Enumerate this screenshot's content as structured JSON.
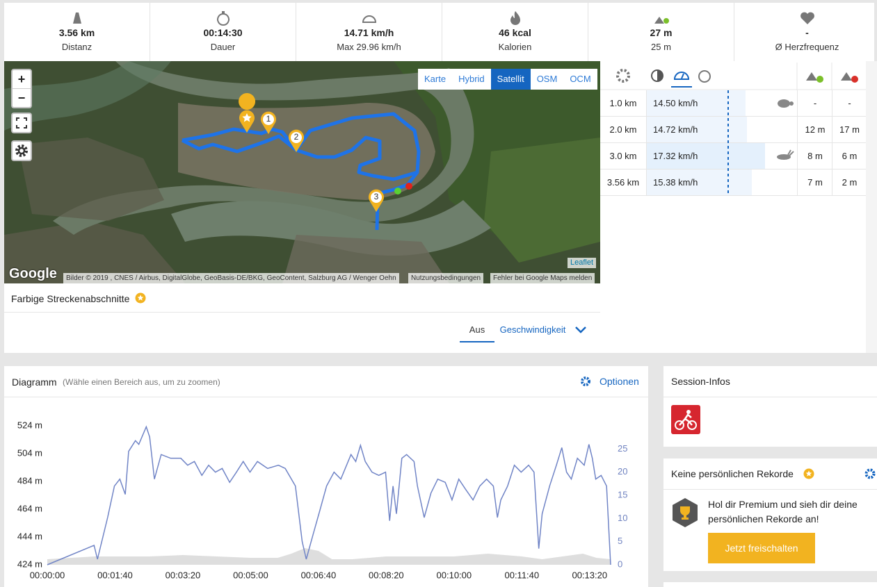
{
  "stats": [
    {
      "value": "3.56 km",
      "label": "Distanz"
    },
    {
      "value": "00:14:30",
      "label": "Dauer"
    },
    {
      "value": "14.71 km/h",
      "label": "Max 29.96 km/h"
    },
    {
      "value": "46 kcal",
      "label": "Kalorien"
    },
    {
      "value": "27 m",
      "label": "25 m"
    },
    {
      "value": "-",
      "label": "Ø Herzfrequenz"
    }
  ],
  "map": {
    "zoom_in": "+",
    "zoom_out": "−",
    "layers": [
      "Karte",
      "Hybrid",
      "Satellit",
      "OSM",
      "OCM"
    ],
    "active_layer": 2,
    "markers": [
      "1",
      "2",
      "3"
    ],
    "leaflet": "Leaflet",
    "google": "Google",
    "attribution": "Bilder © 2019 , CNES / Airbus, DigitalGlobe, GeoBasis-DE/BKG, GeoContent, Salzburg AG / Wenger Oehn",
    "terms": "Nutzungsbedingungen",
    "report": "Fehler bei Google Maps melden"
  },
  "segments": {
    "title": "Farbige Streckenabschnitte",
    "options": [
      "Aus",
      "Geschwindigkeit"
    ],
    "active": 0
  },
  "splits": {
    "rows": [
      {
        "distance": "1.0 km",
        "speed": 14.5,
        "speed_label": "14.50 km/h",
        "up": "-",
        "down": "-"
      },
      {
        "distance": "2.0 km",
        "speed": 14.72,
        "speed_label": "14.72 km/h",
        "up": "12 m",
        "down": "17 m"
      },
      {
        "distance": "3.0 km",
        "speed": 17.32,
        "speed_label": "17.32 km/h",
        "up": "8 m",
        "down": "6 m"
      },
      {
        "distance": "3.56 km",
        "speed": 15.38,
        "speed_label": "15.38 km/h",
        "up": "7 m",
        "down": "2 m"
      }
    ]
  },
  "diagram": {
    "options": "Optionen"
  },
  "chart_data": {
    "type": "line",
    "title": "Diagramm",
    "subtitle": "(Wähle einen Bereich aus, um zu zoomen)",
    "xlim": [
      0,
      831
    ],
    "xticks": [
      {
        "value": 0,
        "label": "00:00:00"
      },
      {
        "value": 100,
        "label": "00:01:40"
      },
      {
        "value": 200,
        "label": "00:03:20"
      },
      {
        "value": 300,
        "label": "00:05:00"
      },
      {
        "value": 400,
        "label": "00:06:40"
      },
      {
        "value": 500,
        "label": "00:08:20"
      },
      {
        "value": 600,
        "label": "00:10:00"
      },
      {
        "value": 700,
        "label": "00:11:40"
      },
      {
        "value": 800,
        "label": "00:13:20"
      }
    ],
    "ylim": [
      424,
      524
    ],
    "yticks": [
      {
        "value": 424,
        "label": "424 m"
      },
      {
        "value": 444,
        "label": "444 m"
      },
      {
        "value": 464,
        "label": "464 m"
      },
      {
        "value": 484,
        "label": "484 m"
      },
      {
        "value": 504,
        "label": "504 m"
      },
      {
        "value": 524,
        "label": "524 m"
      }
    ],
    "y2lim": [
      0,
      30
    ],
    "y2ticks": [
      0,
      5,
      10,
      15,
      20,
      25
    ],
    "grid": false,
    "series": [
      {
        "type": "area",
        "axis": "y",
        "color": "#dedede",
        "x": [
          0,
          70,
          150,
          200,
          300,
          340,
          360,
          380,
          400,
          420,
          450,
          500,
          560,
          600,
          650,
          700,
          730,
          760,
          790,
          810,
          831
        ],
        "values": [
          428,
          430,
          430,
          431,
          429,
          429,
          432,
          436,
          434,
          428,
          428,
          430,
          430,
          430,
          432,
          430,
          428,
          430,
          432,
          429,
          428
        ]
      },
      {
        "type": "line",
        "axis": "y2",
        "color": "#7084c6",
        "x": [
          0,
          69,
          74,
          89,
          99,
          107,
          115,
          120,
          130,
          135,
          146,
          151,
          158,
          168,
          182,
          197,
          207,
          217,
          228,
          238,
          248,
          258,
          269,
          279,
          289,
          299,
          310,
          325,
          341,
          351,
          366,
          376,
          382,
          392,
          402,
          412,
          423,
          433,
          448,
          455,
          462,
          469,
          479,
          489,
          499,
          505,
          510,
          515,
          523,
          530,
          541,
          546,
          556,
          566,
          576,
          587,
          597,
          607,
          617,
          628,
          638,
          648,
          658,
          664,
          669,
          679,
          689,
          699,
          710,
          718,
          725,
          730,
          741,
          751,
          759,
          766,
          773,
          782,
          792,
          799,
          804,
          809,
          817,
          825,
          831
        ],
        "values": [
          0,
          4.2,
          1.2,
          10.2,
          17.0,
          18.5,
          15.2,
          24.5,
          26.8,
          26.0,
          29.8,
          27.6,
          18.5,
          23.8,
          23.0,
          23.0,
          21.5,
          22.3,
          19.3,
          21.5,
          20.0,
          20.8,
          17.8,
          20.0,
          22.3,
          20.0,
          22.3,
          20.8,
          21.5,
          20.8,
          17.0,
          5.0,
          1.2,
          6.5,
          11.7,
          17.0,
          20.0,
          18.5,
          23.8,
          22.3,
          25.8,
          22.3,
          20.0,
          19.3,
          20.0,
          9.5,
          17.0,
          11.0,
          23.0,
          23.8,
          22.3,
          17.0,
          10.2,
          15.5,
          18.5,
          17.8,
          14.0,
          18.5,
          16.3,
          14.0,
          17.0,
          18.5,
          17.0,
          10.2,
          14.0,
          17.0,
          21.5,
          20.0,
          21.5,
          20.0,
          3.5,
          11.0,
          17.0,
          21.5,
          25.3,
          20.0,
          18.5,
          23.0,
          21.5,
          26.0,
          23.0,
          18.5,
          19.3,
          17.0,
          0
        ]
      }
    ]
  },
  "session": {
    "title": "Session-Infos"
  },
  "records": {
    "title": "Keine persönlichen Rekorde",
    "text": "Hol dir Premium und sieh dir deine persönlichen Rekorde an!",
    "button": "Jetzt freischalten"
  }
}
